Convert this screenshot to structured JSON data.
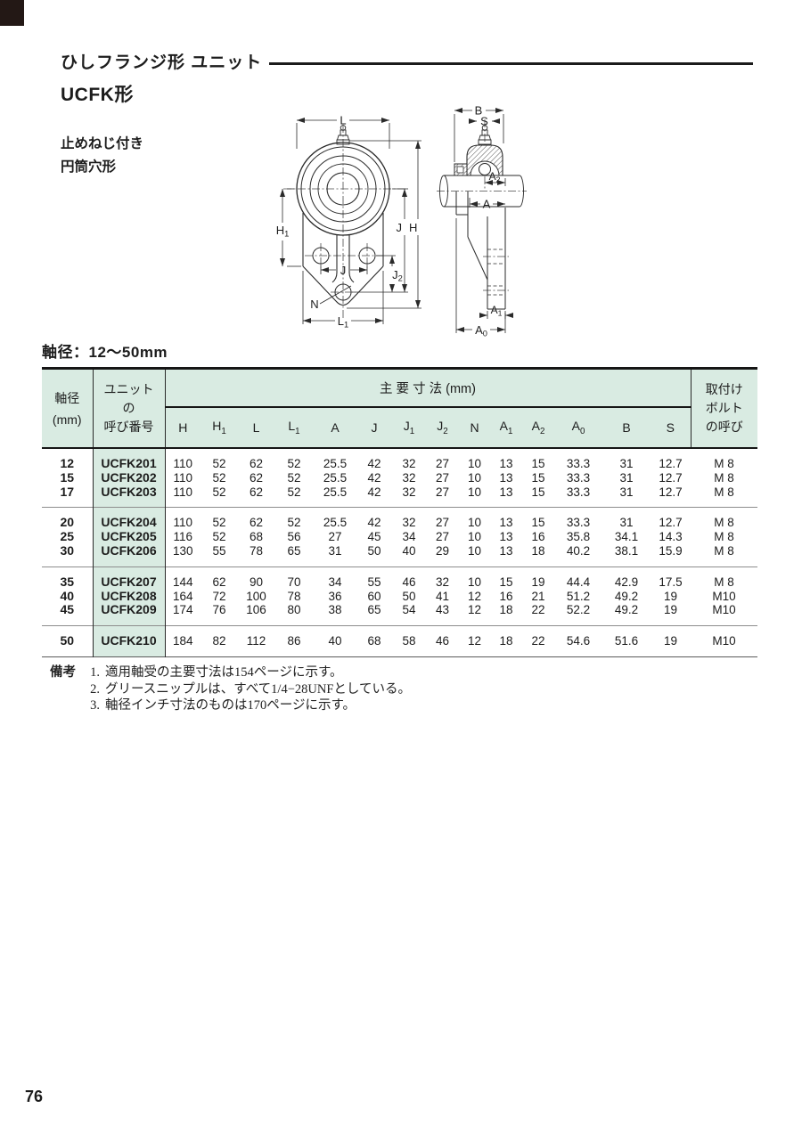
{
  "page": {
    "title": "ひしフランジ形 ユニット",
    "subtitle": "UCFK形",
    "variant_line1": "止めねじ付き",
    "variant_line2": "円筒穴形",
    "shaft_range_label": "軸径：12～50mm",
    "page_number": "76"
  },
  "colors": {
    "header_green": "#d9ebe2",
    "rule_black": "#1b1b1b"
  },
  "diagram": {
    "labels": {
      "L": "L",
      "H1": "H1",
      "J_right": "J",
      "H": "H",
      "J_holes": "J",
      "J2": "J2",
      "N": "N",
      "L1": "L1",
      "B": "B",
      "S": "S",
      "A2": "A2",
      "A": "A",
      "A1": "A1",
      "A0": "A0"
    }
  },
  "table": {
    "head": {
      "shaft": [
        "軸径",
        "(mm)"
      ],
      "unit": [
        "ユニット",
        "の",
        "呼び番号"
      ],
      "dims_group": "主 要 寸 法 (mm)",
      "bolt": [
        "取付け",
        "ボルト",
        "の呼び"
      ]
    },
    "dims": [
      "H",
      "H1",
      "L",
      "L1",
      "A",
      "J",
      "J1",
      "J2",
      "N",
      "A1",
      "A2",
      "A0",
      "B",
      "S"
    ],
    "groups": [
      {
        "rows": [
          {
            "shaft": "12",
            "unit": "UCFK201",
            "values": [
              "110",
              "52",
              "62",
              "52",
              "25.5",
              "42",
              "32",
              "27",
              "10",
              "13",
              "15",
              "33.3",
              "31",
              "12.7"
            ],
            "bolt": "M 8"
          },
          {
            "shaft": "15",
            "unit": "UCFK202",
            "values": [
              "110",
              "52",
              "62",
              "52",
              "25.5",
              "42",
              "32",
              "27",
              "10",
              "13",
              "15",
              "33.3",
              "31",
              "12.7"
            ],
            "bolt": "M 8"
          },
          {
            "shaft": "17",
            "unit": "UCFK203",
            "values": [
              "110",
              "52",
              "62",
              "52",
              "25.5",
              "42",
              "32",
              "27",
              "10",
              "13",
              "15",
              "33.3",
              "31",
              "12.7"
            ],
            "bolt": "M 8"
          }
        ]
      },
      {
        "rows": [
          {
            "shaft": "20",
            "unit": "UCFK204",
            "values": [
              "110",
              "52",
              "62",
              "52",
              "25.5",
              "42",
              "32",
              "27",
              "10",
              "13",
              "15",
              "33.3",
              "31",
              "12.7"
            ],
            "bolt": "M 8"
          },
          {
            "shaft": "25",
            "unit": "UCFK205",
            "values": [
              "116",
              "52",
              "68",
              "56",
              "27",
              "45",
              "34",
              "27",
              "10",
              "13",
              "16",
              "35.8",
              "34.1",
              "14.3"
            ],
            "bolt": "M 8"
          },
          {
            "shaft": "30",
            "unit": "UCFK206",
            "values": [
              "130",
              "55",
              "78",
              "65",
              "31",
              "50",
              "40",
              "29",
              "10",
              "13",
              "18",
              "40.2",
              "38.1",
              "15.9"
            ],
            "bolt": "M 8"
          }
        ]
      },
      {
        "rows": [
          {
            "shaft": "35",
            "unit": "UCFK207",
            "values": [
              "144",
              "62",
              "90",
              "70",
              "34",
              "55",
              "46",
              "32",
              "10",
              "15",
              "19",
              "44.4",
              "42.9",
              "17.5"
            ],
            "bolt": "M 8"
          },
          {
            "shaft": "40",
            "unit": "UCFK208",
            "values": [
              "164",
              "72",
              "100",
              "78",
              "36",
              "60",
              "50",
              "41",
              "12",
              "16",
              "21",
              "51.2",
              "49.2",
              "19"
            ],
            "bolt": "M10"
          },
          {
            "shaft": "45",
            "unit": "UCFK209",
            "values": [
              "174",
              "76",
              "106",
              "80",
              "38",
              "65",
              "54",
              "43",
              "12",
              "18",
              "22",
              "52.2",
              "49.2",
              "19"
            ],
            "bolt": "M10"
          }
        ]
      },
      {
        "rows": [
          {
            "shaft": "50",
            "unit": "UCFK210",
            "values": [
              "184",
              "82",
              "112",
              "86",
              "40",
              "68",
              "58",
              "46",
              "12",
              "18",
              "22",
              "54.6",
              "51.6",
              "19"
            ],
            "bolt": "M10"
          }
        ]
      }
    ]
  },
  "notes": {
    "label": "備考",
    "items": [
      {
        "num": "1.",
        "text": "適用軸受の主要寸法は154ページに示す。"
      },
      {
        "num": "2.",
        "text": "グリースニップルは、すべて1/4−28UNFとしている。"
      },
      {
        "num": "3.",
        "text": "軸径インチ寸法のものは170ページに示す。"
      }
    ]
  }
}
